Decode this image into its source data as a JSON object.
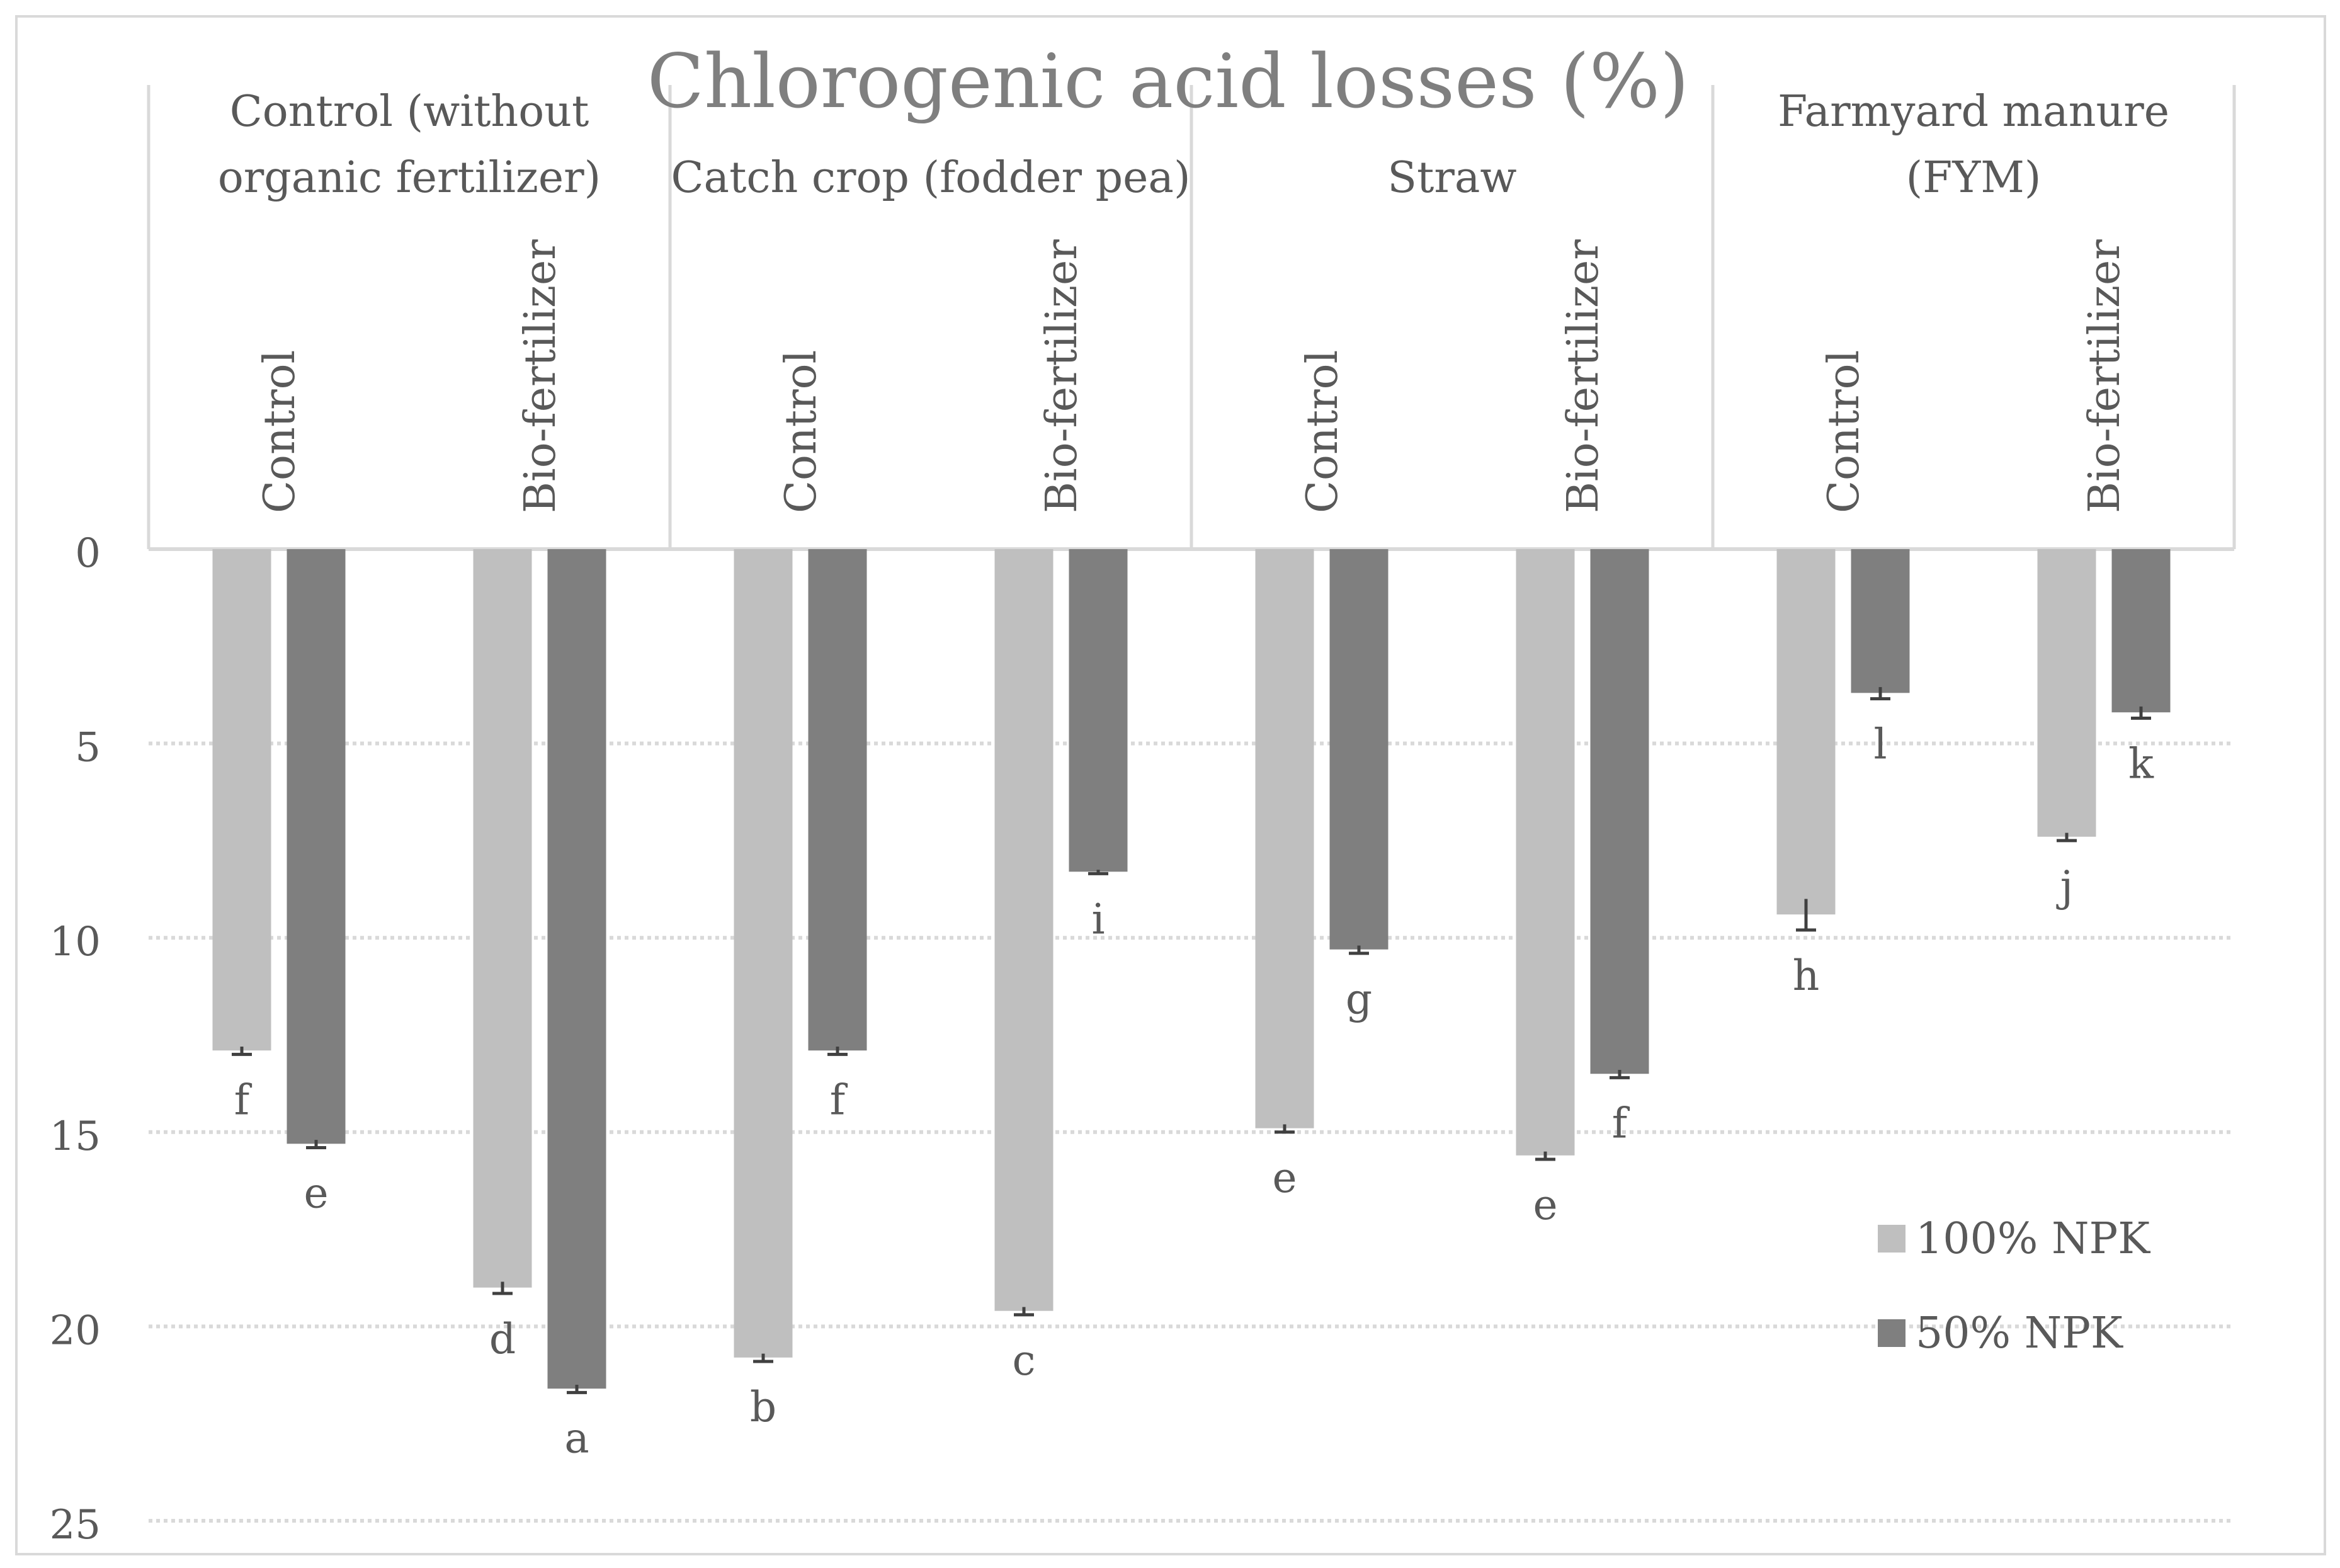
{
  "chart_data": {
    "type": "bar",
    "title": "Chlorogenic acid losses (%)",
    "y_axis": {
      "orientation": "inverted",
      "ylim": [
        0,
        25
      ],
      "ticks": [
        "0",
        "5",
        "10",
        "15",
        "20",
        "25"
      ],
      "tick_values": [
        0,
        5,
        10,
        15,
        20,
        25
      ],
      "gridlines": "dotted"
    },
    "groups": [
      {
        "label": "Control (without organic fertilizer)",
        "label_lines": [
          "Control (without",
          "organic fertilizer)"
        ]
      },
      {
        "label": "Catch crop (fodder pea)",
        "label_lines": [
          "Catch crop (fodder pea)"
        ]
      },
      {
        "label": "Straw",
        "label_lines": [
          "Straw"
        ]
      },
      {
        "label": "Farmyard manure (FYM)",
        "label_lines": [
          "Farmyard manure",
          "(FYM)"
        ]
      }
    ],
    "subcategories": [
      "Control",
      "Bio-fertilizer"
    ],
    "categories": [
      "Control (without organic fertilizer) / Control",
      "Control (without organic fertilizer) / Bio-fertilizer",
      "Catch crop (fodder pea) / Control",
      "Catch crop (fodder pea) / Bio-fertilizer",
      "Straw / Control",
      "Straw / Bio-fertilizer",
      "Farmyard manure (FYM) / Control",
      "Farmyard manure (FYM) / Bio-fertilizer"
    ],
    "series": [
      {
        "name": "100% NPK",
        "color": "#bfbfbf",
        "values": [
          12.9,
          19.0,
          20.8,
          19.6,
          14.9,
          15.6,
          9.4,
          7.4
        ],
        "errors": [
          0.1,
          0.15,
          0.1,
          0.1,
          0.1,
          0.1,
          0.4,
          0.1
        ],
        "letters": [
          "f",
          "d",
          "b",
          "c",
          "e",
          "e",
          "h",
          "j"
        ]
      },
      {
        "name": "50% NPK",
        "color": "#7f7f7f",
        "values": [
          15.3,
          21.6,
          12.9,
          8.3,
          10.3,
          13.5,
          3.7,
          4.2
        ],
        "errors": [
          0.1,
          0.1,
          0.1,
          0.05,
          0.1,
          0.1,
          0.15,
          0.15
        ],
        "letters": [
          "e",
          "a",
          "f",
          "i",
          "g",
          "f",
          "l",
          "k"
        ]
      }
    ],
    "legend_placement": "bottom-right"
  }
}
